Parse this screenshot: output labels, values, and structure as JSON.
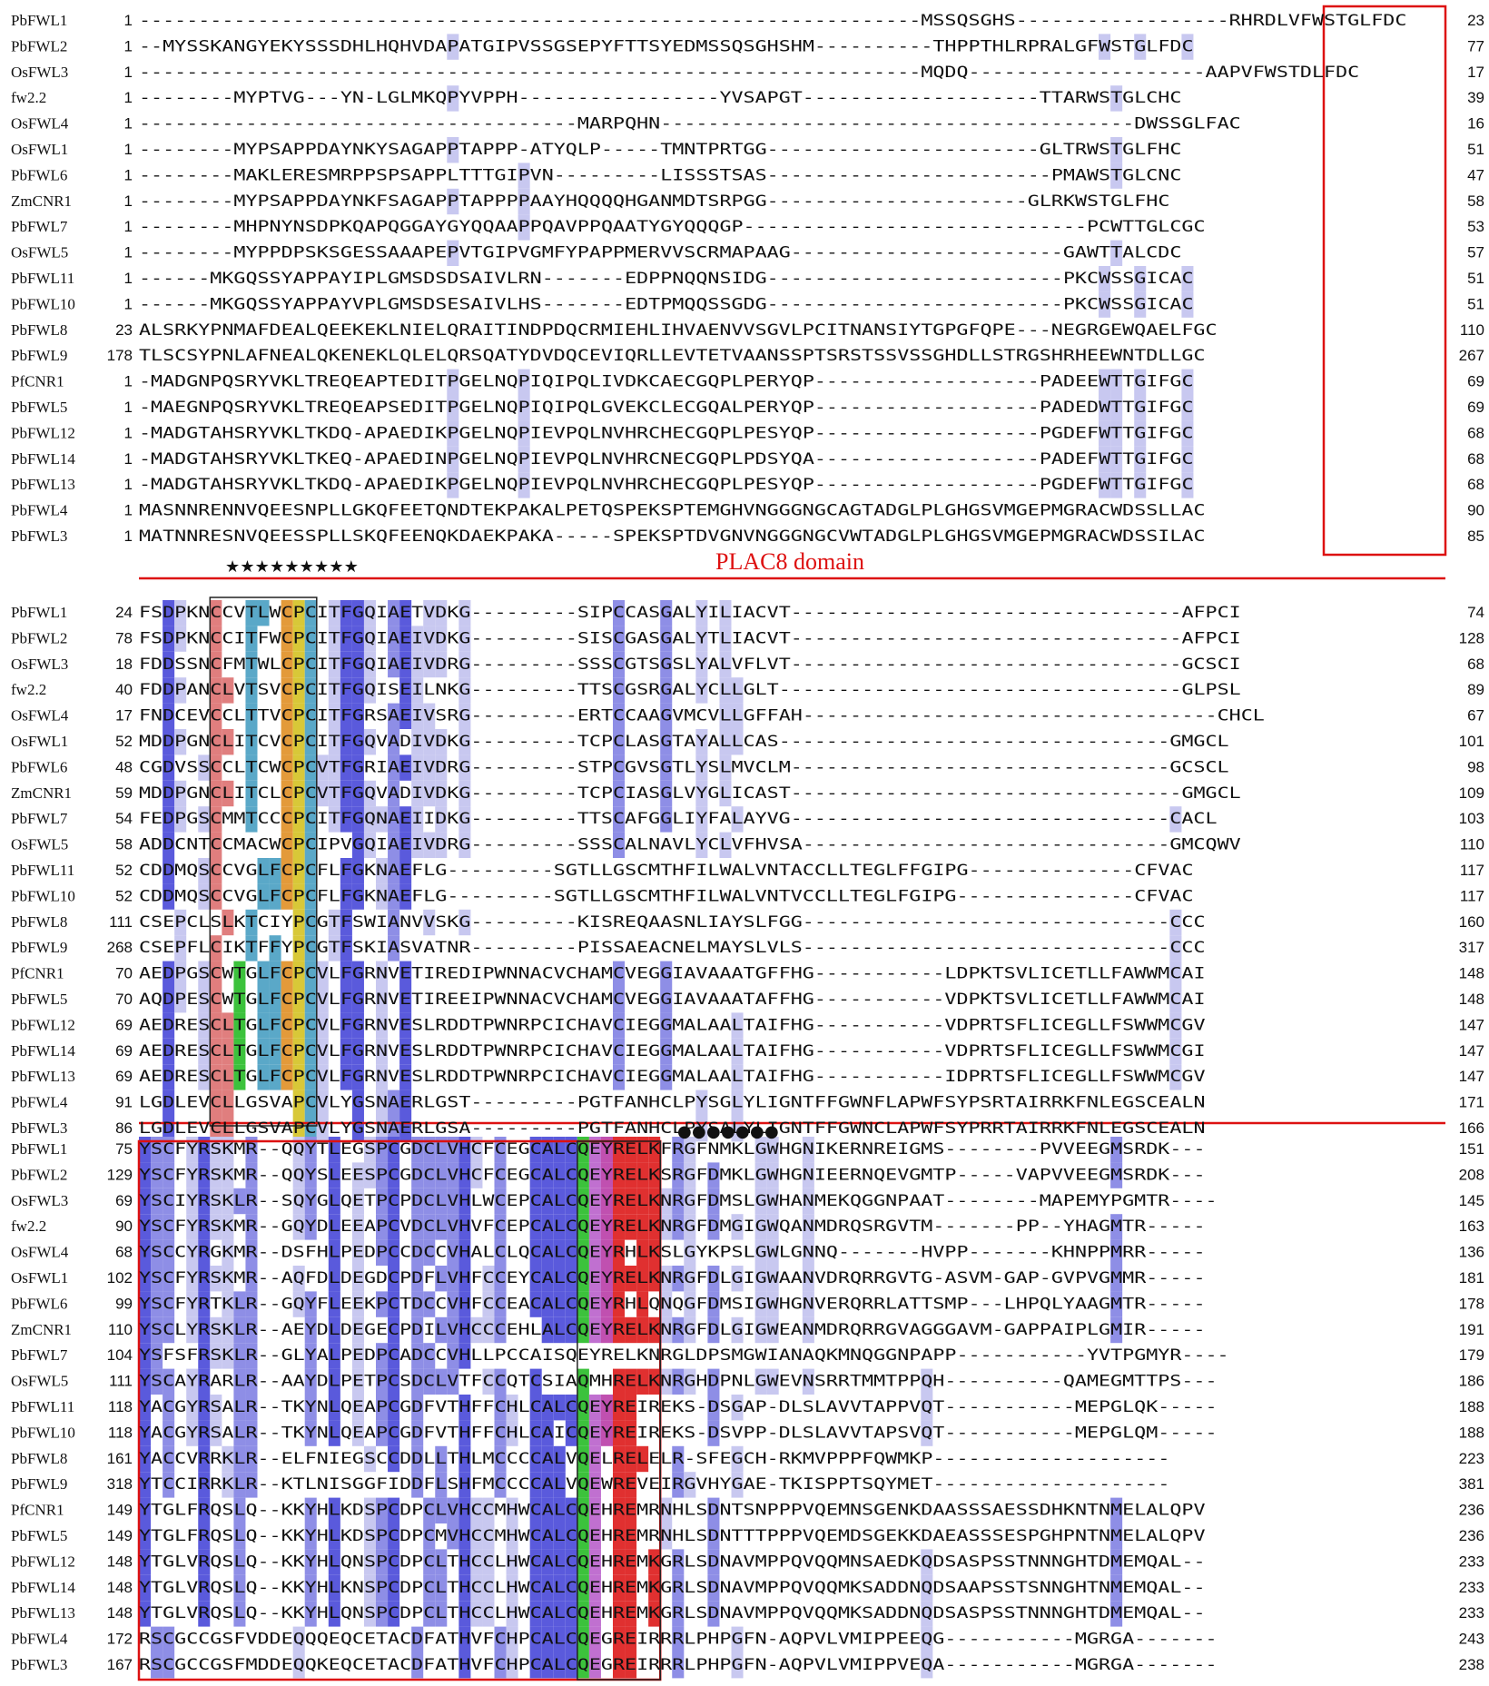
{
  "figure": "multiple-sequence-alignment",
  "colors": {
    "strong": "#5a5adc",
    "medium": "#8e8ee6",
    "light": "#c8c8f0",
    "domain_box": "#d11",
    "salmon": "#e07e7e",
    "green": "#3cc23c",
    "teal": "#5aa8c8",
    "orange": "#e39a3a",
    "yellow": "#d8c838",
    "violet": "#c070d0",
    "magenta": "#c050b0",
    "red": "#e03030"
  },
  "domain_label": "PLAC8 domain",
  "star_marks": "★★★★★★★★★",
  "dot_marks": "●●●●●●●",
  "blocks": [
    {
      "rows": [
        {
          "name": "PbFWL1",
          "start": "1",
          "seq": "------------------------------------------------------------------MSSQSGHS------------------RHRDLVFWSTGLFDC",
          "end": "23"
        },
        {
          "name": "PbFWL2",
          "start": "1",
          "seq": "--MYSSKANGYEKYSSSDHLHQHVDAPATGIPVSSGSEPYFTTSYEDMSSQSGHSHM----------THPPTHLRPRALGFWSTGLFDC",
          "end": "77"
        },
        {
          "name": "OsFWL3",
          "start": "1",
          "seq": "------------------------------------------------------------------MQDQ--------------------AAPVFWSTDLFDC",
          "end": "17"
        },
        {
          "name": "fw2.2",
          "start": "1",
          "seq": "--------MYPTVG---YN-LGLMKQPYVPPH-----------------YVSAPGT--------------------TTARWSTGLCHC",
          "end": "39"
        },
        {
          "name": "OsFWL4",
          "start": "1",
          "seq": "-------------------------------------MARPQHN----------------------------------------DWSSGLFAC",
          "end": "16"
        },
        {
          "name": "OsFWL1",
          "start": "1",
          "seq": "--------MYPSAPPDAYNKYSAGAPPTAPPP-ATYQLP-----TMNTPRTGG-----------------------GLTRWSTGLFHC",
          "end": "51"
        },
        {
          "name": "PbFWL6",
          "start": "1",
          "seq": "--------MAKLERESMRPPSPSAPPLTTTGIPVN---------LISSSTSAS------------------------PMAWSTGLCNC",
          "end": "47"
        },
        {
          "name": "ZmCNR1",
          "start": "1",
          "seq": "--------MYPSAPPDAYNKFSAGAPPTAPPPPAAYHQQQQHGANMDTSRPGG----------------------GLRKWSTGLFHC",
          "end": "58"
        },
        {
          "name": "PbFWL7",
          "start": "1",
          "seq": "--------MHPNYNSDPKQAPQGGAYGYQQAAPPQAVPPQAATYGYQQQGP-----------------------------PCWTTGLCGC",
          "end": "53"
        },
        {
          "name": "OsFWL5",
          "start": "1",
          "seq": "--------MYPPDPSKSGESSAAAPEPVTGIPVGMFYPAPPMERVVSCRMAPAAG-----------------------GAWTTALCDC",
          "end": "57"
        },
        {
          "name": "PbFWL11",
          "start": "1",
          "seq": "------MKGQSSYAPPAYIPLGMSDSDSAIVLRN-------EDPPNQQNSIDG-------------------------PKCWSSGICAC",
          "end": "51"
        },
        {
          "name": "PbFWL10",
          "start": "1",
          "seq": "------MKGQSSYAPPAYVPLGMSDSESAIVLHS-------EDTPMQQSSGDG-------------------------PKCWSSGICAC",
          "end": "51"
        },
        {
          "name": "PbFWL8",
          "start": "23",
          "seq": "ALSRKYPNMAFDEALQEEKEKLNIELQRAITINDPDQCRMIEHLIHVAENVVSGVLPCITNANSIYTGPGFQPE---NEGRGEWQAELFGC",
          "end": "110"
        },
        {
          "name": "PbFWL9",
          "start": "178",
          "seq": "TLSCSYPNLAFNEALQKENEKLQLELQRSQATYDVDQCEVIQRLLEVTETVAANSSPTSRSTSSVSSGHDLLSTRGSHRHEEWNTDLLGC",
          "end": "267"
        },
        {
          "name": "PfCNR1",
          "start": "1",
          "seq": "-MADGNPQSRYVKLTREQEAPTEDITPGELNQPIQIPQLIVDKCAECGQPLPERYQP-------------------PADEEWTTGIFGC",
          "end": "69"
        },
        {
          "name": "PbFWL5",
          "start": "1",
          "seq": "-MAEGNPQSRYVKLTREQEAPSEDITPGELNQPIQIPQLGVEKCLECGQALPERYQP-------------------PADEDWTTGIFGC",
          "end": "69"
        },
        {
          "name": "PbFWL12",
          "start": "1",
          "seq": "-MADGTAHSRYVKLTKDQ-APAEDIKPGELNQPIEVPQLNVHRCHECGQPLPESYQP-------------------PGDEFWTTGIFGC",
          "end": "68"
        },
        {
          "name": "PbFWL14",
          "start": "1",
          "seq": "-MADGTAHSRYVKLTKEQ-APAEDINPGELNQPIEVPQLNVHRCNECGQPLPDSYQA-------------------PADEFWTTGIFGC",
          "end": "68"
        },
        {
          "name": "PbFWL13",
          "start": "1",
          "seq": "-MADGTAHSRYVKLTKDQ-APAEDIKPGELNQPIEVPQLNVHRCHECGQPLPESYQP-------------------PGDEFWTTGIFGC",
          "end": "68"
        },
        {
          "name": "PbFWL4",
          "start": "1",
          "seq": "MASNNRENNVQEESNPLLGKQFEETQNDTEKPAKALPETQSPEKSPTEMGHVNGGGNGCAGTADGLPLGHGSVMGEPMGRACWDSSLLAC",
          "end": "90"
        },
        {
          "name": "PbFWL3",
          "start": "1",
          "seq": "MATNNRESNVQEESSPLLSKQFEENQKDAEKPAKA-----SPEKSPTDVGNVNGGGNGCVWTADGLPLGHGSVMGEPMGRACWDSSILAC",
          "end": "85"
        }
      ]
    },
    {
      "rows": [
        {
          "name": "PbFWL1",
          "start": "24",
          "seq": "FSDPKNCCVTLWCPCITFGQIAETVDKG---------SIPCCASGALYILIACVT---------------------------------AFPCI",
          "end": "74"
        },
        {
          "name": "PbFWL2",
          "start": "78",
          "seq": "FSDPKNCCITFWCPCITFGQIAEIVDKG---------SISCGASGALYTLIACVT---------------------------------AFPCI",
          "end": "128"
        },
        {
          "name": "OsFWL3",
          "start": "18",
          "seq": "FDDSSNCFMTWLCPCITFGQIAEIVDRG---------SSSCGTSGSLYALVFLVT---------------------------------GCSCI",
          "end": "68"
        },
        {
          "name": "fw2.2",
          "start": "40",
          "seq": "FDDPANCLVTSVCPCITFGQISEILNKG---------TTSCGSRGALYCLLGLT----------------------------------GLPSL",
          "end": "89"
        },
        {
          "name": "OsFWL4",
          "start": "17",
          "seq": "FNDCEVCCLTTVCPCITFGRSAEIVSRG---------ERTCCAAGVMCVLLGFFAH-----------------------------------CHCL",
          "end": "67"
        },
        {
          "name": "OsFWL1",
          "start": "52",
          "seq": "MDDPGNCLITCVCPCITFGQVADIVDKG---------TCPCLASGTAYALLCAS---------------------------------GMGCL",
          "end": "101"
        },
        {
          "name": "PbFWL6",
          "start": "48",
          "seq": "CGDVSSCCLTCWCPCVTFGRIAEIVDRG---------STPCGVSGTLYSLMVCLM--------------------------------GCSCL",
          "end": "98"
        },
        {
          "name": "ZmCNR1",
          "start": "59",
          "seq": "MDDPGNCLITCLCPCVTFGQVADIVDKG---------TCPCIASGLVYGLICAST---------------------------------GMGCL",
          "end": "109"
        },
        {
          "name": "PbFWL7",
          "start": "54",
          "seq": "FEDPGSCMMTCCCPCITFGQNAEIIDKG---------TTSCAFGGLIYFALAYVG--------------------------------CACL",
          "end": "103"
        },
        {
          "name": "OsFWL5",
          "start": "58",
          "seq": "ADDCNTCCMACWCPCIPVGQIAEIVDRG---------SSSCALNAVLYCLVFHVSA-------------------------------GMCQWV",
          "end": "110"
        },
        {
          "name": "PbFWL11",
          "start": "52",
          "seq": "CDDMQSCCVGLFCPCFLFGKNAEFLG---------SGTLLGSCMTHFILWALVNTACCLLTEGLFFGIPG--------------CFVAC",
          "end": "117"
        },
        {
          "name": "PbFWL10",
          "start": "52",
          "seq": "CDDMQSCCVGLFCPCFLFGKNAEFLG---------SGTLLGSCMTHFILWALVNTVCCLLTEGLFGIPG---------------CFVAC",
          "end": "117"
        },
        {
          "name": "PbFWL8",
          "start": "111",
          "seq": "CSEPCLSLKTCIYPCGTFSWIANVVSKG---------KISREQAASNLIAYSLFGG-------------------------------CCC",
          "end": "160"
        },
        {
          "name": "PbFWL9",
          "start": "268",
          "seq": "CSEPFLCIKTFFYPCGTFSKIASVATNR---------PISSAEACNELMAYSLVLS-------------------------------CCC",
          "end": "317"
        },
        {
          "name": "PfCNR1",
          "start": "70",
          "seq": "AEDPGSCWTGLFCPCVLFGRNVETIREDIPWNNACVCHAMCVEGGIAVAAATGFFHG-----------LDPKTSVLICETLLFAWWMCAI",
          "end": "148"
        },
        {
          "name": "PbFWL5",
          "start": "70",
          "seq": "AQDPESCWTGLFCPCVLFGRNVETIREEIPWNNACVCHAMCVEGGIAVAAATAFFHG-----------VDPKTSVLICETLLFAWWMCAI",
          "end": "148"
        },
        {
          "name": "PbFWL12",
          "start": "69",
          "seq": "AEDRESCLTGLFCPCVLFGRNVESLRDDTPWNRPCICHAVCIEGGMALAALTAIFHG-----------VDPRTSFLICEGLLFSWWMCGV",
          "end": "147"
        },
        {
          "name": "PbFWL14",
          "start": "69",
          "seq": "AEDRESCLTGLFCPCVLFGRNVESLRDDTPWNRPCICHAVCIEGGMALAALTAIFHG-----------VDPRTSFLICEGLLFSWWMCGI",
          "end": "147"
        },
        {
          "name": "PbFWL13",
          "start": "69",
          "seq": "AEDRESCLTGLFCPCVLFGRNVESLRDDTPWNRPCICHAVCIEGGMALAALTAIFHG-----------IDPRTSFLICEGLLFSWWMCGV",
          "end": "147"
        },
        {
          "name": "PbFWL4",
          "start": "91",
          "seq": "LGDLEVCLLGSVAPCVLYGSNAERLGST---------PGTFANHCLPYSGLYLIGNTFFGWNFLAPWFSYPSRTAIRRKFNLEGSCEALN",
          "end": "171"
        },
        {
          "name": "PbFWL3",
          "start": "86",
          "seq": "LGDLEVCLLGSVAPCVLYGSNAERLGSA---------PGTFANHCLPYSALYLIGNTFFGWNCLAPWFSYPRRTAIRRKFNLEGSCEALN",
          "end": "166"
        }
      ]
    },
    {
      "rows": [
        {
          "name": "PbFWL1",
          "start": "75",
          "seq": "YSCFYRSKMR--QQYTLEGSPCGDCLVHCFCEGCALCQEYRELKFRGFNMKLGWHGNIKERNREIGMS--------PVVEEGMSRDK---",
          "end": "151"
        },
        {
          "name": "PbFWL2",
          "start": "129",
          "seq": "YSCFYRSKMR--QQYSLEESPCGDCLVHCFCEGCALCQEYRELKSRGFDMKLGWHGNIEERNQEVGMTP-----VAPVVEEGMSRDK---",
          "end": "208"
        },
        {
          "name": "OsFWL3",
          "start": "69",
          "seq": "YSCIYRSKLR--SQYGLQETPCPDCLVHLWCEPCALCQEYRELKNRGFDMSLGWHANMEKQGGNPAAT--------MAPEMYPGMTR----",
          "end": "145"
        },
        {
          "name": "fw2.2",
          "start": "90",
          "seq": "YSCFYRSKMR--GQYDLEEAPCVDCLVHVFCEPCALCQEYRELKNRGFDMGIGWQANMDRQSRGVTM-------PP--YHAGMTR-----",
          "end": "163"
        },
        {
          "name": "OsFWL4",
          "start": "68",
          "seq": "YSCCYRGKMR--DSFHLPEDPCCDCCVHALCLQCALCQEYRHLKSLGYKPSLGWLGNNQ-------HVPP-------KHNPPMRR-----",
          "end": "136"
        },
        {
          "name": "OsFWL1",
          "start": "102",
          "seq": "YSCFYRSKMR--AQFDLDEGDCPDFLVHFCCEYCALCQEYRELKNRGFDLGIGWAANVDRQRRGVTG-ASVM-GAP-GVPVGMMR-----",
          "end": "181"
        },
        {
          "name": "PbFWL6",
          "start": "99",
          "seq": "YSCFYRTKLR--GQYFLEEKPCTDCCVHFCCEACALCQEYRHLQNQGFDMSIGWHGNVERQRRLATTSMP---LHPQLYAAGMTR-----",
          "end": "178"
        },
        {
          "name": "ZmCNR1",
          "start": "110",
          "seq": "YSCLYRSKLR--AEYDLDEGECPDILVHCCCEHLALCQEYRELKNRGFDLGIGWEANMDRQRRGVAGGGAVM-GAPPAIPLGMIR-----",
          "end": "191"
        },
        {
          "name": "PbFWL7",
          "start": "104",
          "seq": "YSFSFRSKLR--GLYALPEDPCADCCVHLLPCCAISQEYRELKNRGLDPSMGWIANAQKMNQGGNPAPP-----------YVTPGMYR----",
          "end": "179"
        },
        {
          "name": "OsFWL5",
          "start": "111",
          "seq": "YSCAYRARLR--AAYDLPETPCSDCLVTFCCQTCSIAQMHRELKNRGHDPNLGWEVNSRRTMMTPPQH----------QAMEGMTTPS---",
          "end": "186"
        },
        {
          "name": "PbFWL11",
          "start": "118",
          "seq": "YACGYRSALR--TKYNLQEAPCGDFVTHFFCHLCALCQEYREIREKS-DSGAP-DLSLAVVTAPPVQT-----------MEPGLQK-----",
          "end": "188"
        },
        {
          "name": "PbFWL10",
          "start": "118",
          "seq": "YACGYRSALR--TKYNLQEAPCGDFVTHFFCHLCAICQEYREIREKS-DSVPP-DLSLAVVTAPSVQT-----------MEPGLQM-----",
          "end": "188"
        },
        {
          "name": "PbFWL8",
          "start": "161",
          "seq": "YACCVRRKLR--ELFNIEGSCCDDLLTHLMCCCCALVQELRELELR-SFEGCH-RKMVPPPFQWMKP--------------------",
          "end": "223"
        },
        {
          "name": "PbFWL9",
          "start": "318",
          "seq": "YTCCIRRKLR--KTLNISGGFIDDFLSHFMCCCCALVQEWREVEIRGVHYGAE-TKISPPTSQYMET--------------------",
          "end": "381"
        },
        {
          "name": "PfCNR1",
          "start": "149",
          "seq": "YTGLFRQSLQ--KKYHLKDSPCDPCLVHCCMHWCALCQEHREMRNHLSDNTSNPPPVQEMNSGENKDAASSSAESSDHKNTNMELALQPV",
          "end": "236"
        },
        {
          "name": "PbFWL5",
          "start": "149",
          "seq": "YTGLFRQSLQ--KKYHLKDSPCDPCMVHCCMHWCALCQEHREMRNHLSDNTTTPPPVQEMDSGEKKDAEASSSESPGHPNTNMELALQPV",
          "end": "236"
        },
        {
          "name": "PbFWL12",
          "start": "148",
          "seq": "YTGLVRQSLQ--KKYHLQNSPCDPCLTHCCLHWCALCQEHREMKGRLSDNAVMPPQVQQMNSAEDKQDSASPSSTNNNGHTDMEMQAL--",
          "end": "233"
        },
        {
          "name": "PbFWL14",
          "start": "148",
          "seq": "YTGLVRQSLQ--KKYHLKNSPCDPCLTHCCLHWCALCQEHREMKGRLSDNAVMPPQVQQMKSADDNQDSAAPSSTSNNGHTNMEMQAL--",
          "end": "233"
        },
        {
          "name": "PbFWL13",
          "start": "148",
          "seq": "YTGLVRQSLQ--KKYHLQNSPCDPCLTHCCLHWCALCQEHREMKGRLSDNAVMPPQVQQMKSADDNQDSASPSSTNNNGHTDMEMQAL--",
          "end": "233"
        },
        {
          "name": "PbFWL4",
          "start": "172",
          "seq": "RSCGCCGSFVDDEQQQEQCETACDFATHVFCHPCALCQEGREIRRRLPHPGFN-AQPVLVMIPPEEQG-----------MGRGA-------",
          "end": "243"
        },
        {
          "name": "PbFWL3",
          "start": "167",
          "seq": "RSCGCCGSFMDDEQQKEQCETACDFATHVFCHPCALCQEGREIRRRLPHPGFN-AQPVLVMIPPVEQA-----------MGRGA-------",
          "end": "238"
        }
      ]
    }
  ]
}
